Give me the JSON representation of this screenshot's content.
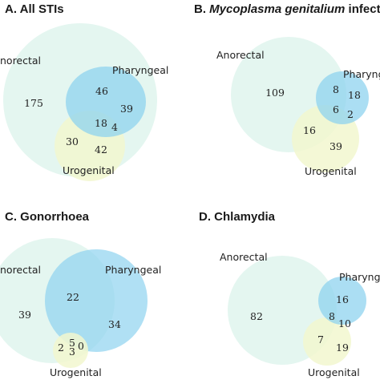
{
  "palette": {
    "anorectal": "#e4f6f0",
    "pharyngeal": "#8fd3ef",
    "urogenital": "#f2f7cf",
    "overlap_anorectal_pharyngeal": "#9dd8e8"
  },
  "panels": [
    {
      "id": "a",
      "title_prefix": "A. All STIs",
      "title_italic": "",
      "title_suffix": "",
      "labels": {
        "anorectal": "norectal",
        "pharyngeal": "Pharyngeal",
        "urogenital": "Urogenital"
      },
      "counts": {
        "anorectal_only": "175",
        "pharyngeal_only": "46",
        "pharyngeal_right": "39",
        "all_three": "18",
        "pharyngeal_urogenital": "4",
        "anorectal_urogenital": "30",
        "urogenital_only": "42"
      }
    },
    {
      "id": "b",
      "title_prefix": "B. ",
      "title_italic": "Mycoplasma genitalium",
      "title_suffix": " infectio",
      "labels": {
        "anorectal": "Anorectal",
        "pharyngeal": "Pharyng",
        "urogenital": "Urogenital"
      },
      "counts": {
        "anorectal_only": "109",
        "anorectal_pharyngeal": "8",
        "pharyngeal_only": "18",
        "all_three": "6",
        "pharyngeal_urogenital": "2",
        "anorectal_urogenital": "16",
        "urogenital_only": "39"
      }
    },
    {
      "id": "c",
      "title_prefix": "C. Gonorrhoea",
      "title_italic": "",
      "title_suffix": "",
      "labels": {
        "anorectal": "norectal",
        "pharyngeal": "Pharyngeal",
        "urogenital": "Urogenital"
      },
      "counts": {
        "anorectal_only": "39",
        "anorectal_pharyngeal": "22",
        "pharyngeal_only": "34",
        "all_three": "5",
        "pharyngeal_urogenital": "0",
        "anorectal_urogenital": "2",
        "urogenital_only": "3"
      }
    },
    {
      "id": "d",
      "title_prefix": "D. Chlamydia",
      "title_italic": "",
      "title_suffix": "",
      "labels": {
        "anorectal": "Anorectal",
        "pharyngeal": "Pharyngea",
        "urogenital": "Urogenital"
      },
      "counts": {
        "anorectal_only": "82",
        "anorectal_pharyngeal": "16",
        "all_three": "8",
        "pharyngeal_urogenital": "10",
        "anorectal_urogenital": "7",
        "urogenital_only": "19"
      }
    }
  ]
}
